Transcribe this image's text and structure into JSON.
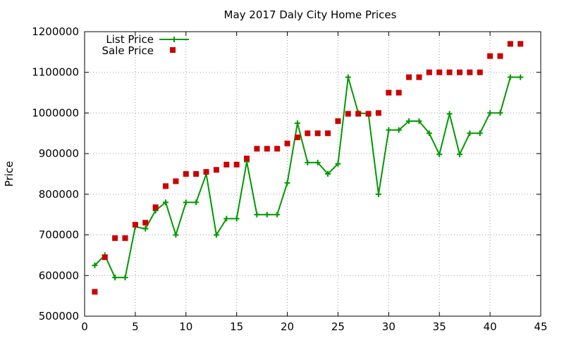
{
  "chart_data": {
    "type": "line",
    "title": "May 2017 Daly City Home Prices",
    "xlabel": "",
    "ylabel": "Price",
    "xlim": [
      0,
      45
    ],
    "ylim": [
      500000,
      1200000
    ],
    "x_ticks": [
      0,
      5,
      10,
      15,
      20,
      25,
      30,
      35,
      40,
      45
    ],
    "y_ticks": [
      500000,
      600000,
      700000,
      800000,
      900000,
      1000000,
      1100000,
      1200000
    ],
    "grid": true,
    "legend_position": "top-left",
    "series": [
      {
        "name": "List Price",
        "style": "line-with-plus-markers",
        "color": "#009900",
        "x": [
          1,
          2,
          3,
          4,
          5,
          6,
          7,
          8,
          9,
          10,
          11,
          12,
          13,
          14,
          15,
          16,
          17,
          18,
          19,
          20,
          21,
          22,
          23,
          24,
          25,
          26,
          27,
          28,
          29,
          30,
          31,
          32,
          33,
          34,
          35,
          36,
          37,
          38,
          39,
          40,
          41,
          42,
          43
        ],
        "values": [
          625000,
          650000,
          595000,
          595000,
          720000,
          715000,
          760000,
          780000,
          700000,
          780000,
          780000,
          850000,
          700000,
          740000,
          740000,
          880000,
          750000,
          750000,
          750000,
          828000,
          975000,
          878000,
          878000,
          850000,
          875000,
          1088000,
          1000000,
          998000,
          800000,
          958000,
          958000,
          980000,
          980000,
          950000,
          898000,
          998000,
          898000,
          950000,
          950000,
          1000000,
          1000000,
          1088000,
          1088000
        ]
      },
      {
        "name": "Sale Price",
        "style": "square-markers",
        "color": "#cc0000",
        "x": [
          1,
          2,
          3,
          4,
          5,
          6,
          7,
          8,
          9,
          10,
          11,
          12,
          13,
          14,
          15,
          16,
          17,
          18,
          19,
          20,
          21,
          22,
          23,
          24,
          25,
          26,
          27,
          28,
          29,
          30,
          31,
          32,
          33,
          34,
          35,
          36,
          37,
          38,
          39,
          40,
          41,
          42,
          43
        ],
        "values": [
          560000,
          645000,
          692000,
          692000,
          725000,
          730000,
          768000,
          820000,
          832000,
          850000,
          850000,
          855000,
          860000,
          873000,
          873000,
          888000,
          912000,
          912000,
          912000,
          925000,
          940000,
          950000,
          950000,
          950000,
          980000,
          998000,
          998000,
          998000,
          1000000,
          1050000,
          1050000,
          1088000,
          1088000,
          1100000,
          1100000,
          1100000,
          1100000,
          1100000,
          1100000,
          1140000,
          1140000,
          1170000,
          1170000
        ]
      }
    ]
  }
}
